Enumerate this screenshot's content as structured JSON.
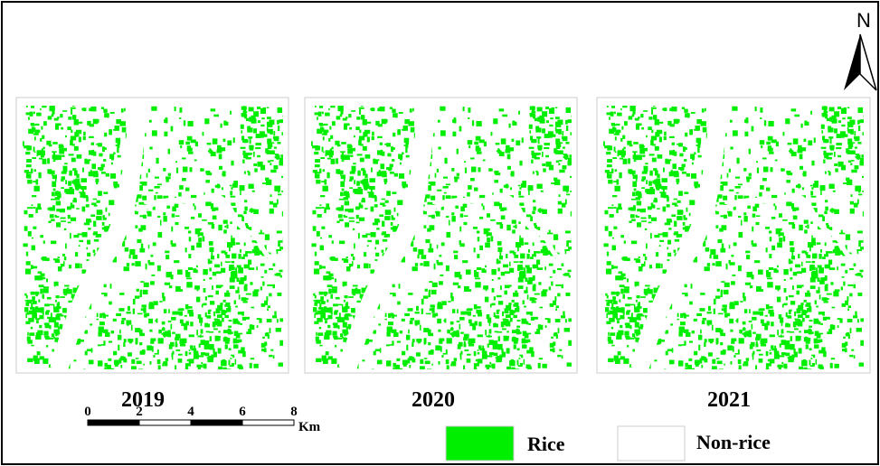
{
  "north": "N",
  "panels": [
    {
      "label": "2019"
    },
    {
      "label": "2020"
    },
    {
      "label": "2021"
    }
  ],
  "scale_bar": {
    "ticks": [
      "0",
      "2",
      "4",
      "6",
      "8"
    ],
    "unit": "Km"
  },
  "legend": [
    {
      "label": "Rice",
      "color": "#00ee00"
    },
    {
      "label": "Non-rice",
      "color": "#ffffff"
    }
  ]
}
